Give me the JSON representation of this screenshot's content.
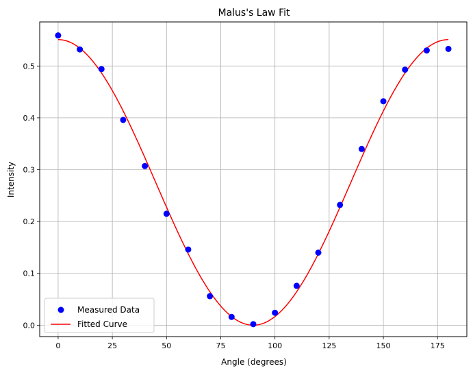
{
  "chart_data": {
    "type": "line",
    "title": "Malus's Law Fit",
    "xlabel": "Angle (degrees)",
    "ylabel": "Intensity",
    "xlim": [
      -8.5,
      188.5
    ],
    "ylim": [
      -0.022,
      0.585
    ],
    "xticks": [
      0,
      25,
      50,
      75,
      100,
      125,
      150,
      175
    ],
    "yticks": [
      0.0,
      0.1,
      0.2,
      0.3,
      0.4,
      0.5
    ],
    "xtick_labels": [
      "0",
      "25",
      "50",
      "75",
      "100",
      "125",
      "150",
      "175"
    ],
    "ytick_labels": [
      "0.0",
      "0.1",
      "0.2",
      "0.3",
      "0.4",
      "0.5"
    ],
    "grid": true,
    "legend_position": "lower left",
    "series": [
      {
        "name": "Measured Data",
        "kind": "scatter",
        "color": "#0000ff",
        "x": [
          0,
          10,
          20,
          30,
          40,
          50,
          60,
          70,
          80,
          90,
          100,
          110,
          120,
          130,
          140,
          150,
          160,
          170,
          180
        ],
        "y": [
          0.559,
          0.532,
          0.494,
          0.396,
          0.307,
          0.215,
          0.146,
          0.056,
          0.016,
          0.002,
          0.024,
          0.076,
          0.14,
          0.232,
          0.34,
          0.432,
          0.493,
          0.53,
          0.533
        ]
      },
      {
        "name": "Fitted Curve",
        "kind": "line",
        "color": "#ff0000",
        "model": "I0*cos^2(theta)",
        "I0": 0.551,
        "x_range": [
          0,
          180
        ]
      }
    ]
  }
}
